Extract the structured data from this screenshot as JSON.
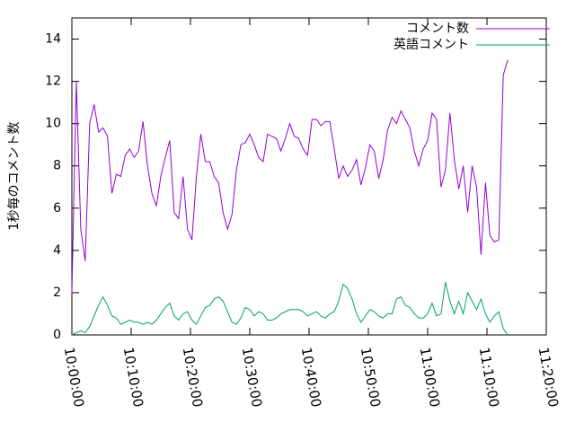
{
  "chart_data": {
    "type": "line",
    "ylabel": "1秒毎のコメント数",
    "x": [
      "10:00:00",
      "10:00:45",
      "10:01:30",
      "10:02:15",
      "10:03:00",
      "10:03:45",
      "10:04:30",
      "10:05:15",
      "10:06:00",
      "10:06:45",
      "10:07:30",
      "10:08:15",
      "10:09:00",
      "10:09:45",
      "10:10:30",
      "10:11:15",
      "10:12:00",
      "10:12:45",
      "10:13:30",
      "10:14:15",
      "10:15:00",
      "10:15:45",
      "10:16:30",
      "10:17:15",
      "10:18:00",
      "10:18:45",
      "10:19:30",
      "10:20:15",
      "10:21:00",
      "10:21:45",
      "10:22:30",
      "10:23:15",
      "10:24:00",
      "10:24:45",
      "10:25:30",
      "10:26:15",
      "10:27:00",
      "10:27:45",
      "10:28:30",
      "10:29:15",
      "10:30:00",
      "10:30:45",
      "10:31:30",
      "10:32:15",
      "10:33:00",
      "10:33:45",
      "10:34:30",
      "10:35:15",
      "10:36:00",
      "10:36:45",
      "10:37:30",
      "10:38:15",
      "10:39:00",
      "10:39:45",
      "10:40:30",
      "10:41:15",
      "10:42:00",
      "10:42:45",
      "10:43:30",
      "10:44:15",
      "10:45:00",
      "10:45:45",
      "10:46:30",
      "10:47:15",
      "10:48:00",
      "10:48:45",
      "10:49:30",
      "10:50:15",
      "10:51:00",
      "10:51:45",
      "10:52:30",
      "10:53:15",
      "10:54:00",
      "10:54:45",
      "10:55:30",
      "10:56:15",
      "10:57:00",
      "10:57:45",
      "10:58:30",
      "10:59:15",
      "11:00:00",
      "11:00:45",
      "11:01:30",
      "11:02:15",
      "11:03:00",
      "11:03:45",
      "11:04:30",
      "11:05:15",
      "11:06:00",
      "11:06:45",
      "11:07:30",
      "11:08:15",
      "11:09:00",
      "11:09:45",
      "11:10:30",
      "11:11:15",
      "11:12:00",
      "11:12:45",
      "11:13:30"
    ],
    "series": [
      {
        "name": "コメント数",
        "color": "#9400d3",
        "values": [
          2,
          12,
          5,
          3.5,
          10,
          10.9,
          9.6,
          9.8,
          9.4,
          6.7,
          7.6,
          7.5,
          8.5,
          8.8,
          8.4,
          8.7,
          10.1,
          8,
          6.7,
          6.1,
          7.5,
          8.4,
          9.2,
          5.8,
          5.5,
          7.5,
          5,
          4.5,
          7.5,
          9.5,
          8.2,
          8.2,
          7.5,
          7.2,
          5.8,
          5,
          5.7,
          7.8,
          9,
          9.1,
          9.5,
          9,
          8.4,
          8.2,
          9.5,
          9.4,
          9.3,
          8.7,
          9.3,
          10,
          9.4,
          9.3,
          8.8,
          8.5,
          10.2,
          10.2,
          9.9,
          10.1,
          10.1,
          8.8,
          7.4,
          8,
          7.5,
          7.8,
          8.3,
          7.1,
          7.9,
          9,
          8.7,
          7.4,
          8.3,
          9.7,
          10.3,
          10,
          10.6,
          10.2,
          9.8,
          8.7,
          8,
          8.8,
          9.2,
          10.5,
          10.2,
          7,
          7.8,
          10.5,
          8.3,
          6.9,
          8,
          5.8,
          8,
          7,
          3.8,
          7.2,
          4.7,
          4.4,
          4.5,
          12.3,
          13
        ]
      },
      {
        "name": "英語コメント",
        "color": "#009e73",
        "values": [
          0,
          0.1,
          0.2,
          0.1,
          0.4,
          0.9,
          1.4,
          1.8,
          1.4,
          0.9,
          0.8,
          0.5,
          0.6,
          0.7,
          0.6,
          0.6,
          0.5,
          0.6,
          0.5,
          0.7,
          1,
          1.3,
          1.5,
          0.9,
          0.7,
          1,
          1.1,
          0.7,
          0.5,
          0.9,
          1.3,
          1.4,
          1.7,
          1.8,
          1.6,
          1.1,
          0.6,
          0.5,
          0.8,
          1.3,
          1.2,
          0.9,
          1.1,
          1,
          0.7,
          0.7,
          0.8,
          1,
          1.1,
          1.2,
          1.2,
          1.2,
          1.1,
          0.9,
          1,
          1.1,
          0.9,
          0.8,
          1,
          1.1,
          1.6,
          2.4,
          2.2,
          1.7,
          1,
          0.6,
          0.9,
          1.2,
          1.1,
          0.9,
          0.8,
          1,
          1,
          1.7,
          1.8,
          1.4,
          1.3,
          1,
          0.8,
          0.8,
          1,
          1.5,
          0.9,
          1,
          2.5,
          1.6,
          1,
          1.6,
          1,
          2,
          1.6,
          1.2,
          1.7,
          1,
          0.6,
          0.9,
          1.1,
          0.3,
          0
        ]
      }
    ],
    "xlim": [
      "10:00:00",
      "11:20:00"
    ],
    "xticks": [
      "10:00:00",
      "10:10:00",
      "10:20:00",
      "10:30:00",
      "10:40:00",
      "10:50:00",
      "11:00:00",
      "11:10:00",
      "11:20:00"
    ],
    "ylim": [
      0,
      15
    ],
    "yticks": [
      0,
      2,
      4,
      6,
      8,
      10,
      12,
      14
    ],
    "legend": "top-right"
  }
}
